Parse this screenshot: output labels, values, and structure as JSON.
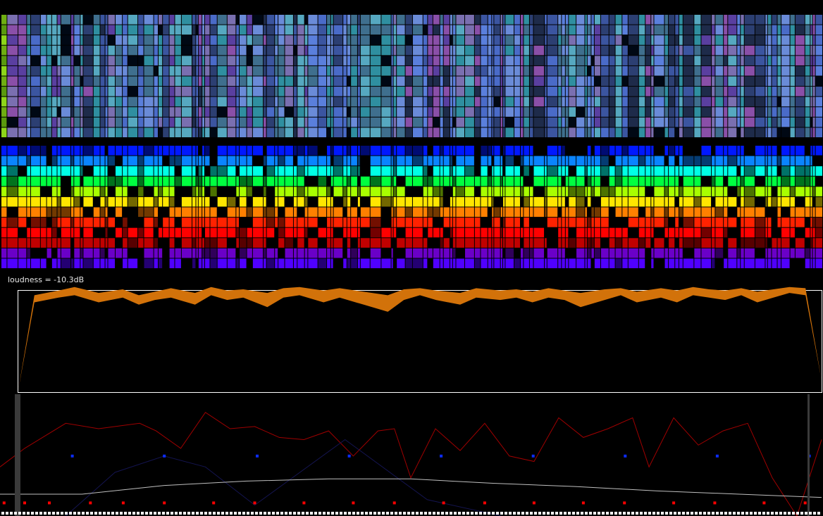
{
  "loudness_label": "loudness = -10.3dB",
  "chart_data": [
    {
      "type": "heatmap",
      "variant": "timbre",
      "rows": 12,
      "segments": 134,
      "palette": [
        "#1e2b4a",
        "#2c3f72",
        "#3b55a0",
        "#4a6bc8",
        "#5a7fdc",
        "#6a8bd8",
        "#3f6f8e",
        "#2f8fa0",
        "#56a8c0",
        "#7a6fb0",
        "#5a3fa0",
        "#8a4fa8"
      ]
    },
    {
      "type": "heatmap",
      "variant": "pitch-chroma",
      "rows": 12,
      "segments": 134,
      "row_colors": [
        "#0018ff",
        "#0a84ff",
        "#00ffe6",
        "#00ff40",
        "#a8ff00",
        "#ffe600",
        "#ff8000",
        "#ff2200",
        "#ff0000",
        "#c00000",
        "#6a00c8",
        "#5000ff"
      ]
    },
    {
      "type": "area",
      "series": [
        {
          "name": "loudness",
          "color": "#d2720a",
          "x": [
            0,
            2,
            5,
            7,
            10,
            13,
            15,
            17,
            19,
            22,
            24,
            26,
            28,
            31,
            33,
            35,
            38,
            40,
            43,
            46,
            48,
            50,
            52,
            55,
            57,
            60,
            62,
            64,
            66,
            68,
            70,
            73,
            75,
            77,
            80,
            82,
            84,
            86,
            88,
            90,
            92,
            94,
            96,
            98,
            100
          ],
          "upper": [
            -44,
            -4,
            -2,
            -0.5,
            -3,
            -1.5,
            -4,
            -2.5,
            -1,
            -3,
            -0.5,
            -2,
            -1.5,
            -3,
            -1,
            -0.5,
            -2,
            -1,
            -2.5,
            -4,
            -1.5,
            -1,
            -2,
            -3,
            -1,
            -2,
            -1.5,
            -2.5,
            -1,
            -2,
            -3,
            -1.5,
            -1,
            -2.5,
            -1,
            -2,
            -0.5,
            -1.5,
            -2,
            -1,
            -2.5,
            -1.5,
            -0.5,
            -1,
            -40
          ],
          "lower": [
            -44,
            -7,
            -5,
            -4,
            -7,
            -5,
            -8,
            -6,
            -5,
            -8,
            -4,
            -6,
            -5,
            -9,
            -5,
            -4,
            -7,
            -5,
            -8,
            -11,
            -6,
            -4,
            -6,
            -8,
            -5,
            -6,
            -5,
            -7,
            -5,
            -6,
            -9,
            -6,
            -4,
            -7,
            -5,
            -7,
            -4,
            -5,
            -6,
            -4,
            -7,
            -5,
            -3,
            -4,
            -40
          ],
          "ylim": [
            -45,
            0
          ]
        }
      ]
    },
    {
      "type": "line",
      "series": [
        {
          "name": "red",
          "color": "#a00000",
          "points": [
            [
              0,
              0.55
            ],
            [
              3,
              0.38
            ],
            [
              8,
              0.15
            ],
            [
              12,
              0.2
            ],
            [
              17,
              0.15
            ],
            [
              19,
              0.22
            ],
            [
              22,
              0.38
            ],
            [
              25,
              0.05
            ],
            [
              28,
              0.2
            ],
            [
              31,
              0.18
            ],
            [
              34,
              0.28
            ],
            [
              37,
              0.3
            ],
            [
              40,
              0.22
            ],
            [
              43,
              0.45
            ],
            [
              46,
              0.22
            ],
            [
              48,
              0.2
            ],
            [
              50,
              0.65
            ],
            [
              53,
              0.2
            ],
            [
              56,
              0.4
            ],
            [
              59,
              0.15
            ],
            [
              62,
              0.45
            ],
            [
              65,
              0.5
            ],
            [
              68,
              0.1
            ],
            [
              71,
              0.28
            ],
            [
              74,
              0.2
            ],
            [
              77,
              0.1
            ],
            [
              79,
              0.55
            ],
            [
              82,
              0.1
            ],
            [
              85,
              0.35
            ],
            [
              88,
              0.22
            ],
            [
              91,
              0.15
            ],
            [
              94,
              0.65
            ],
            [
              97,
              1.0
            ],
            [
              100,
              0.3
            ]
          ]
        },
        {
          "name": "navy",
          "color": "#141450",
          "points": [
            [
              8,
              1.0
            ],
            [
              14,
              0.6
            ],
            [
              20,
              0.45
            ],
            [
              25,
              0.55
            ],
            [
              31,
              0.9
            ],
            [
              42,
              0.3
            ],
            [
              52,
              0.85
            ],
            [
              61,
              1.0
            ]
          ]
        },
        {
          "name": "gray",
          "color": "#bfbfbf",
          "points": [
            [
              0,
              0.8
            ],
            [
              10,
              0.8
            ],
            [
              20,
              0.72
            ],
            [
              30,
              0.68
            ],
            [
              40,
              0.66
            ],
            [
              50,
              0.66
            ],
            [
              60,
              0.7
            ],
            [
              70,
              0.73
            ],
            [
              80,
              0.77
            ],
            [
              90,
              0.8
            ],
            [
              100,
              0.83
            ]
          ]
        }
      ],
      "markers": [
        {
          "name": "blue-dots",
          "color": "#0c2cff",
          "x": [
            8.8,
            20.0,
            31.3,
            42.5,
            53.7,
            64.9,
            76.1,
            87.3,
            98.5
          ],
          "y": [
            0.45,
            0.45,
            0.45,
            0.45,
            0.45,
            0.45,
            0.45,
            0.45,
            0.45
          ]
        },
        {
          "name": "red-dots",
          "color": "#ff0000",
          "x": [
            0.5,
            3,
            6,
            11,
            15,
            20,
            26,
            31,
            37,
            43,
            48,
            54,
            59,
            65,
            71,
            76,
            82,
            87,
            93,
            98
          ],
          "y": [
            0.88,
            0.88,
            0.88,
            0.88,
            0.88,
            0.88,
            0.88,
            0.88,
            0.88,
            0.88,
            0.88,
            0.88,
            0.88,
            0.88,
            0.88,
            0.88,
            0.88,
            0.88,
            0.88,
            0.88
          ]
        }
      ]
    }
  ]
}
